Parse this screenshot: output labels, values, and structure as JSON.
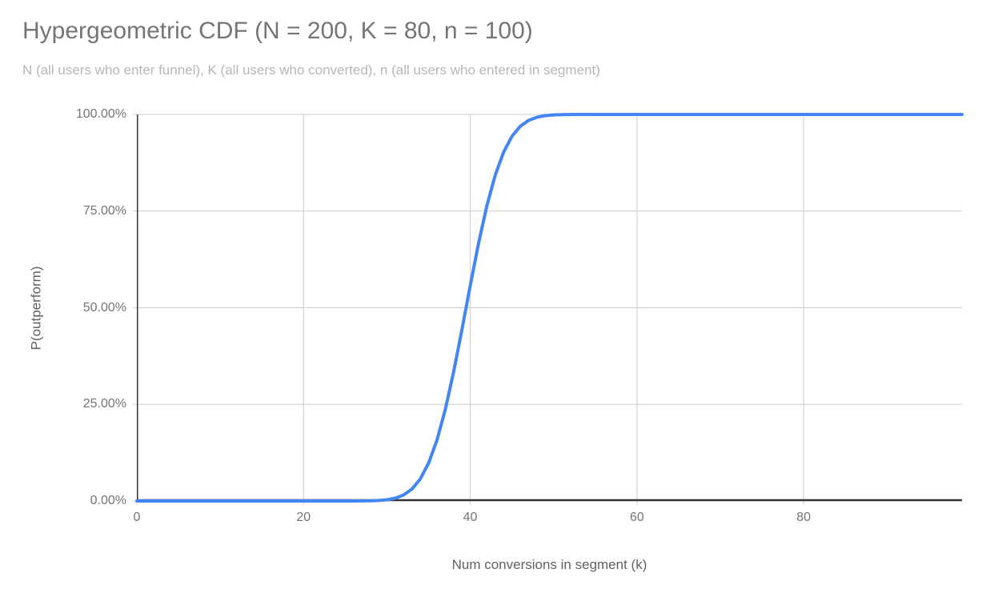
{
  "page": {
    "background": "#ffffff"
  },
  "chart_data": {
    "type": "line",
    "title": "Hypergeometric CDF (N = 200, K = 80, n = 100)",
    "subtitle": "N (all users who enter funnel), K (all users who converted), n (all users who entered in segment)",
    "xlabel": "Num conversions in segment (k)",
    "ylabel": "P(outperform)",
    "xlim": [
      0,
      99
    ],
    "ylim": [
      0,
      1
    ],
    "grid": true,
    "legend": "none",
    "x_ticks": [
      {
        "value": 0,
        "label": "0"
      },
      {
        "value": 20,
        "label": "20"
      },
      {
        "value": 40,
        "label": "40"
      },
      {
        "value": 60,
        "label": "60"
      },
      {
        "value": 80,
        "label": "80"
      }
    ],
    "y_ticks": [
      {
        "value": 0.0,
        "label": "0.00%"
      },
      {
        "value": 0.25,
        "label": "25.00%"
      },
      {
        "value": 0.5,
        "label": "50.00%"
      },
      {
        "value": 0.75,
        "label": "75.00%"
      },
      {
        "value": 1.0,
        "label": "100.00%"
      }
    ],
    "series": [
      {
        "name": "P(outperform)",
        "color": "#4285f4",
        "x_start": 0,
        "x_step": 1,
        "values": [
          0,
          0,
          0,
          0,
          0,
          0,
          0,
          0,
          0,
          0,
          0,
          0,
          0,
          0,
          0,
          0,
          0,
          0,
          0,
          0,
          0,
          0,
          0,
          0,
          0,
          0,
          0.0001,
          0.0002,
          0.0005,
          0.0012,
          0.0031,
          0.0072,
          0.0154,
          0.0307,
          0.0567,
          0.0977,
          0.1569,
          0.236,
          0.3332,
          0.4428,
          0.5572,
          0.6668,
          0.764,
          0.8431,
          0.9023,
          0.9433,
          0.9693,
          0.9846,
          0.9928,
          0.9969,
          0.9988,
          0.9995,
          0.9998,
          0.9999,
          1,
          1,
          1,
          1,
          1,
          1,
          1,
          1,
          1,
          1,
          1,
          1,
          1,
          1,
          1,
          1,
          1,
          1,
          1,
          1,
          1,
          1,
          1,
          1,
          1,
          1,
          1,
          1,
          1,
          1,
          1,
          1,
          1,
          1,
          1,
          1,
          1,
          1,
          1,
          1,
          1,
          1,
          1,
          1,
          1,
          1
        ]
      }
    ],
    "colors": {
      "line": "#4285f4",
      "gridline": "#cccccc",
      "axis_line": "#333333",
      "title_color": "#757575",
      "subtitle_color": "#b7b7b7",
      "tick_label_color": "#757575",
      "axis_title_color": "#616161",
      "background": "#ffffff"
    }
  }
}
